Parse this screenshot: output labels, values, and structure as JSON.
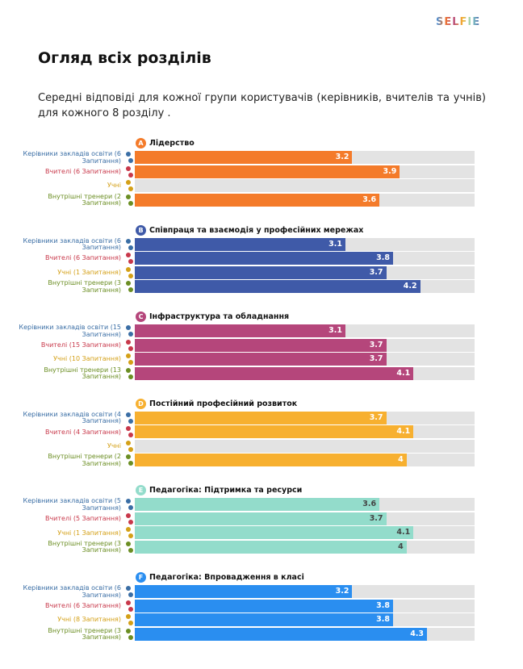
{
  "header": {
    "logo": "SELFIE",
    "title": "Огляд всіх розділів",
    "subtitle": "Середні відповіді для кожної групи користувачів (керівників, вчителів та учнів) для кожного 8 розділу ."
  },
  "chart_data": [
    {
      "type": "bar",
      "letter": "A",
      "title": "Лідерство",
      "color": "#f47b2a",
      "label_color": "#ffffff",
      "xlim": [
        0,
        5
      ],
      "categories": [
        "Керівники закладів освіти (6 Запитання)",
        "Вчителі (6 Запитання)",
        "Учні",
        "Внутрішні тренери (2 Запитання)"
      ],
      "values": [
        3.2,
        3.9,
        null,
        3.6
      ]
    },
    {
      "type": "bar",
      "letter": "B",
      "title": "Співпраця та взаємодія у професійних мережах",
      "color": "#3f5aa8",
      "label_color": "#ffffff",
      "xlim": [
        0,
        5
      ],
      "categories": [
        "Керівники закладів освіти (6 Запитання)",
        "Вчителі (6 Запитання)",
        "Учні (1 Запитання)",
        "Внутрішні тренери (3 Запитання)"
      ],
      "values": [
        3.1,
        3.8,
        3.7,
        4.2
      ]
    },
    {
      "type": "bar",
      "letter": "C",
      "title": "Інфраструктура та обладнання",
      "color": "#b5467b",
      "label_color": "#ffffff",
      "xlim": [
        0,
        5
      ],
      "categories": [
        "Керівники закладів освіти (15 Запитання)",
        "Вчителі (15 Запитання)",
        "Учні (10 Запитання)",
        "Внутрішні тренери (13 Запитання)"
      ],
      "values": [
        3.1,
        3.7,
        3.7,
        4.1
      ]
    },
    {
      "type": "bar",
      "letter": "D",
      "title": "Постійний професійний розвиток",
      "color": "#f7b030",
      "label_color": "#ffffff",
      "xlim": [
        0,
        5
      ],
      "categories": [
        "Керівники закладів освіти (4 Запитання)",
        "Вчителі (4 Запитання)",
        "Учні",
        "Внутрішні тренери (2 Запитання)"
      ],
      "values": [
        3.7,
        4.1,
        null,
        4
      ]
    },
    {
      "type": "bar",
      "letter": "E",
      "title": "Педагогіка: Підтримка та ресурси",
      "color": "#93dccb",
      "label_color": "#444444",
      "xlim": [
        0,
        5
      ],
      "categories": [
        "Керівники закладів освіти (5 Запитання)",
        "Вчителі (5 Запитання)",
        "Учні (1 Запитання)",
        "Внутрішні тренери (3 Запитання)"
      ],
      "values": [
        3.6,
        3.7,
        4.1,
        4
      ]
    },
    {
      "type": "bar",
      "letter": "F",
      "title": "Педагогіка: Впровадження в класі",
      "color": "#2a8ef0",
      "label_color": "#ffffff",
      "xlim": [
        0,
        5
      ],
      "categories": [
        "Керівники закладів освіти (6 Запитання)",
        "Вчителі (6 Запитання)",
        "Учні (8 Запитання)",
        "Внутрішні тренери (3 Запитання)"
      ],
      "values": [
        3.2,
        3.8,
        3.8,
        4.3
      ]
    }
  ]
}
